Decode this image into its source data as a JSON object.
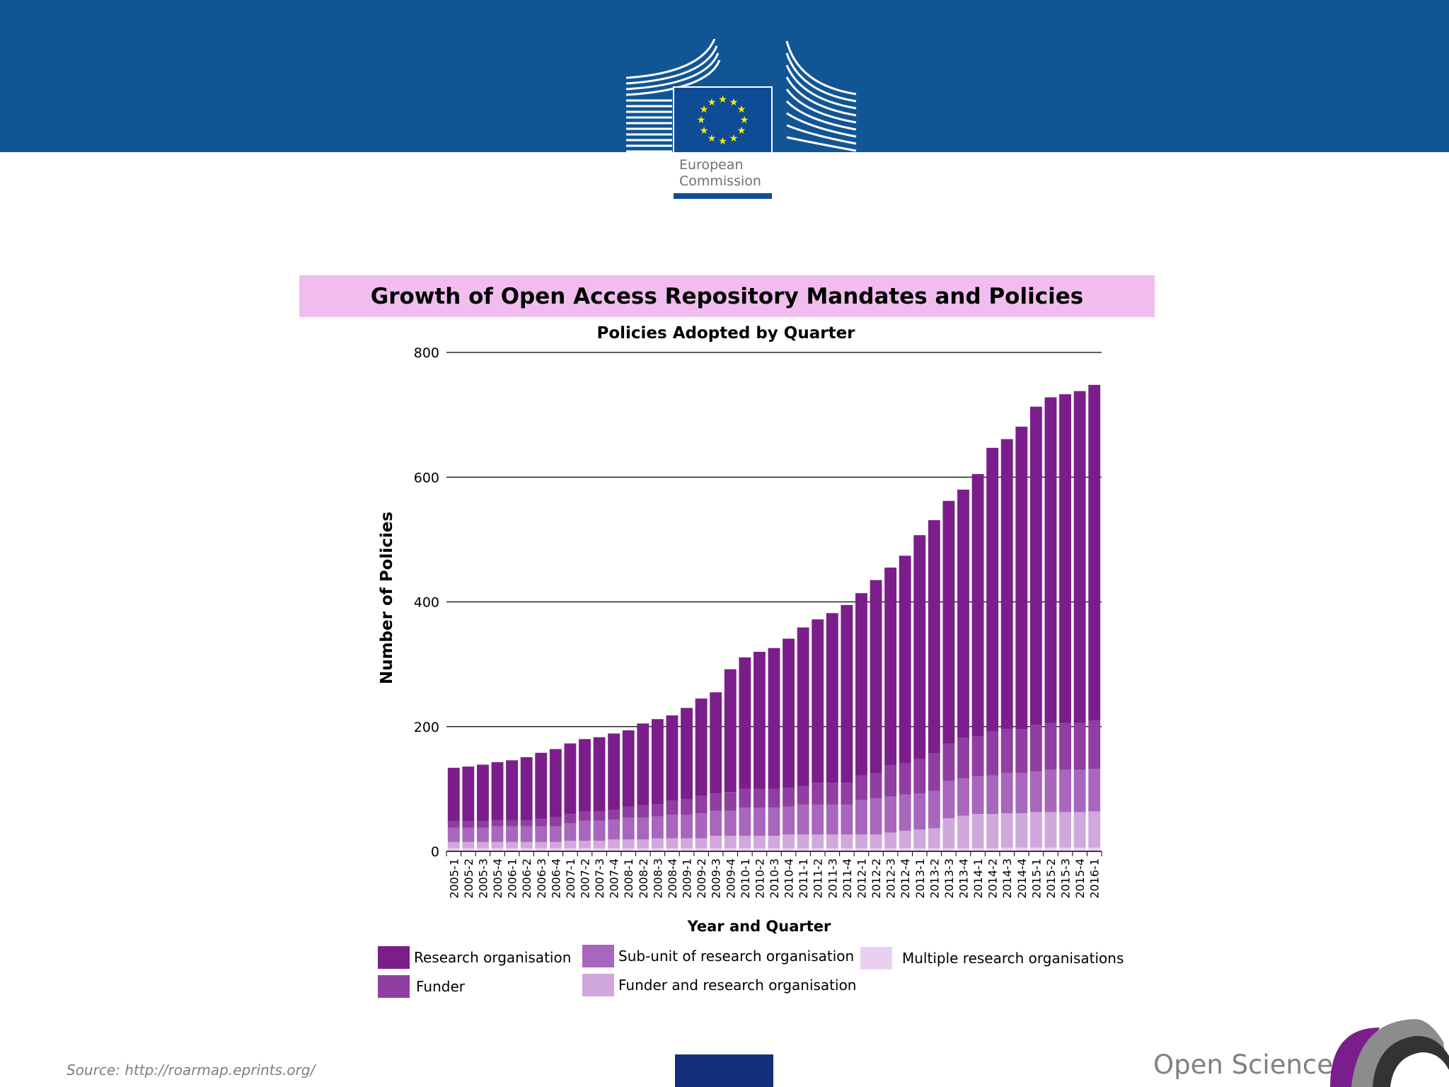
{
  "header": {
    "logo_text_line1": "European",
    "logo_text_line2": "Commission",
    "banner_color": "#115595"
  },
  "slide_title": "Growth of Open Access Repository Mandates and Policies",
  "chart_data": {
    "type": "bar",
    "stacked": true,
    "title": "Policies Adopted by Quarter",
    "xlabel": "Year and Quarter",
    "ylabel": "Number of Policies",
    "ylim": [
      0,
      800
    ],
    "yticks": [
      0,
      200,
      400,
      600,
      800
    ],
    "grid": true,
    "legend_position": "bottom",
    "categories": [
      "2005-1",
      "2005-2",
      "2005-3",
      "2005-4",
      "2006-1",
      "2006-2",
      "2006-3",
      "2006-4",
      "2007-1",
      "2007-2",
      "2007-3",
      "2007-4",
      "2008-1",
      "2008-2",
      "2008-3",
      "2008-4",
      "2009-1",
      "2009-2",
      "2009-3",
      "2009-4",
      "2010-1",
      "2010-2",
      "2010-3",
      "2010-4",
      "2011-1",
      "2011-2",
      "2011-3",
      "2011-4",
      "2012-1",
      "2012-2",
      "2012-3",
      "2012-4",
      "2013-1",
      "2013-2",
      "2013-3",
      "2013-4",
      "2014-1",
      "2014-2",
      "2014-3",
      "2014-4",
      "2015-1",
      "2015-2",
      "2015-3",
      "2015-4",
      "2016-1"
    ],
    "series": [
      {
        "name": "Multiple research organisations",
        "color": "#ead0f0",
        "values": [
          5,
          5,
          5,
          5,
          5,
          5,
          5,
          5,
          5,
          5,
          5,
          5,
          5,
          5,
          5,
          5,
          5,
          5,
          5,
          5,
          5,
          5,
          5,
          5,
          5,
          5,
          5,
          5,
          5,
          5,
          5,
          5,
          5,
          5,
          5,
          5,
          5,
          5,
          6,
          6,
          6,
          6,
          6,
          6,
          6
        ]
      },
      {
        "name": "Funder and research organisation",
        "color": "#d0a8dc",
        "values": [
          10,
          10,
          10,
          10,
          10,
          10,
          10,
          10,
          12,
          12,
          12,
          14,
          14,
          14,
          16,
          16,
          16,
          16,
          20,
          20,
          20,
          20,
          20,
          22,
          22,
          22,
          22,
          22,
          22,
          22,
          25,
          28,
          30,
          32,
          48,
          52,
          55,
          55,
          55,
          55,
          57,
          57,
          57,
          57,
          58
        ]
      },
      {
        "name": "Sub-unit of research organisation",
        "color": "#a866bd",
        "values": [
          23,
          23,
          23,
          25,
          25,
          25,
          25,
          25,
          28,
          32,
          32,
          32,
          35,
          35,
          35,
          38,
          38,
          40,
          40,
          40,
          45,
          45,
          45,
          45,
          48,
          48,
          48,
          48,
          55,
          58,
          58,
          58,
          58,
          60,
          60,
          60,
          60,
          62,
          65,
          65,
          65,
          68,
          68,
          68,
          68
        ]
      },
      {
        "name": "Funder",
        "color": "#903ea1",
        "values": [
          10,
          10,
          10,
          10,
          10,
          10,
          12,
          15,
          15,
          15,
          15,
          15,
          18,
          20,
          20,
          22,
          25,
          28,
          28,
          30,
          30,
          30,
          30,
          30,
          30,
          35,
          35,
          35,
          40,
          40,
          50,
          50,
          55,
          60,
          60,
          65,
          65,
          70,
          70,
          70,
          75,
          75,
          75,
          75,
          78
        ]
      },
      {
        "name": "Research organisation",
        "color": "#7b1e8c",
        "values": [
          86,
          88,
          91,
          93,
          96,
          101,
          106,
          109,
          113,
          116,
          119,
          123,
          122,
          131,
          136,
          137,
          146,
          156,
          162,
          197,
          211,
          220,
          226,
          239,
          254,
          262,
          272,
          285,
          292,
          310,
          317,
          333,
          359,
          374,
          389,
          398,
          420,
          455,
          465,
          485,
          510,
          522,
          527,
          532,
          538
        ]
      }
    ],
    "legend_order": [
      "Research organisation",
      "Sub-unit of research organisation",
      "Multiple research organisations",
      "Funder",
      "Funder and research organisation"
    ]
  },
  "footer": {
    "source": "Source: http://roarmap.eprints.org/",
    "brand": "Open Science"
  }
}
